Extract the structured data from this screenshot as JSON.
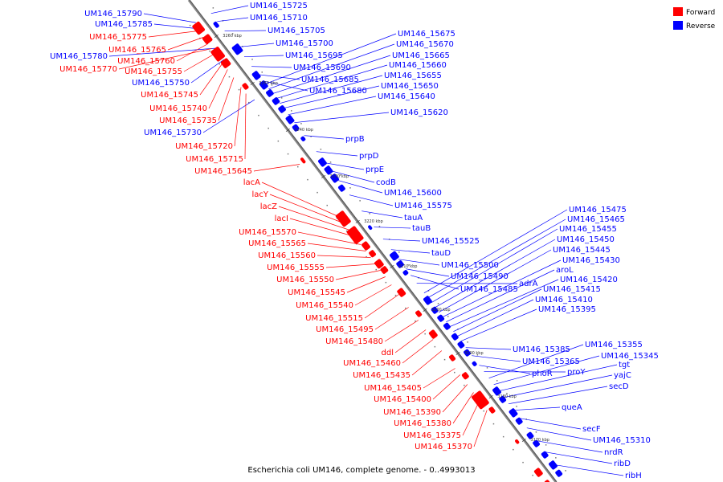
{
  "caption": "Escherichia coli UM146, complete genome. - 0..4993013",
  "legend": [
    {
      "label": "Forward",
      "color": "#ff0000"
    },
    {
      "label": "Reverse",
      "color": "#0000ff"
    }
  ],
  "colors": {
    "forward": "#ff0000",
    "reverse": "#0000ff",
    "axis": "#888888"
  },
  "axis_ticks": [
    "3260 kbp",
    "3250 kbp",
    "3240 kbp",
    "3230 kbp",
    "3220 kbp",
    "3210 kbp",
    "3200 kbp",
    "3190 kbp",
    "3180 kbp",
    "3170 kbp"
  ],
  "reverse_genes": [
    "UM146_15725",
    "UM146_15710",
    "UM146_15705",
    "UM146_15700",
    "UM146_15695",
    "UM146_15690",
    "UM146_15685",
    "UM146_15680",
    "UM146_15675",
    "UM146_15670",
    "UM146_15665",
    "UM146_15660",
    "UM146_15655",
    "UM146_15650",
    "UM146_15640",
    "UM146_15620",
    "prpB",
    "prpD",
    "prpE",
    "codB",
    "UM146_15600",
    "UM146_15575",
    "tauA",
    "tauB",
    "UM146_15525",
    "tauD",
    "UM146_15500",
    "UM146_15490",
    "UM146_15485",
    "adrA",
    "UM146_15475",
    "UM146_15465",
    "UM146_15455",
    "UM146_15450",
    "UM146_15445",
    "UM146_15430",
    "aroL",
    "UM146_15420",
    "UM146_15415",
    "UM146_15410",
    "UM146_15395",
    "UM146_15385",
    "UM146_15365",
    "phoR",
    "proY",
    "UM146_15355",
    "UM146_15345",
    "tgt",
    "yajC",
    "secD",
    "queA",
    "secF",
    "UM146_15310",
    "nrdR",
    "ribD",
    "ribH"
  ],
  "reverse_genes_left": [
    "UM146_15790",
    "UM146_15785",
    "UM146_15780",
    "UM146_15750",
    "UM146_15730"
  ],
  "forward_genes": [
    "UM146_15775",
    "UM146_15765",
    "UM146_15760",
    "UM146_15770",
    "UM146_15755",
    "UM146_15745",
    "UM146_15740",
    "UM146_15735",
    "UM146_15720",
    "UM146_15715",
    "UM146_15645",
    "lacA",
    "lacY",
    "lacZ",
    "lacI",
    "UM146_15570",
    "UM146_15565",
    "UM146_15560",
    "UM146_15555",
    "UM146_15550",
    "UM146_15545",
    "UM146_15540",
    "UM146_15515",
    "UM146_15495",
    "UM146_15480",
    "ddl",
    "UM146_15460",
    "UM146_15435",
    "UM146_15405",
    "UM146_15400",
    "UM146_15390",
    "UM146_15380",
    "UM146_15375",
    "UM146_15370"
  ]
}
